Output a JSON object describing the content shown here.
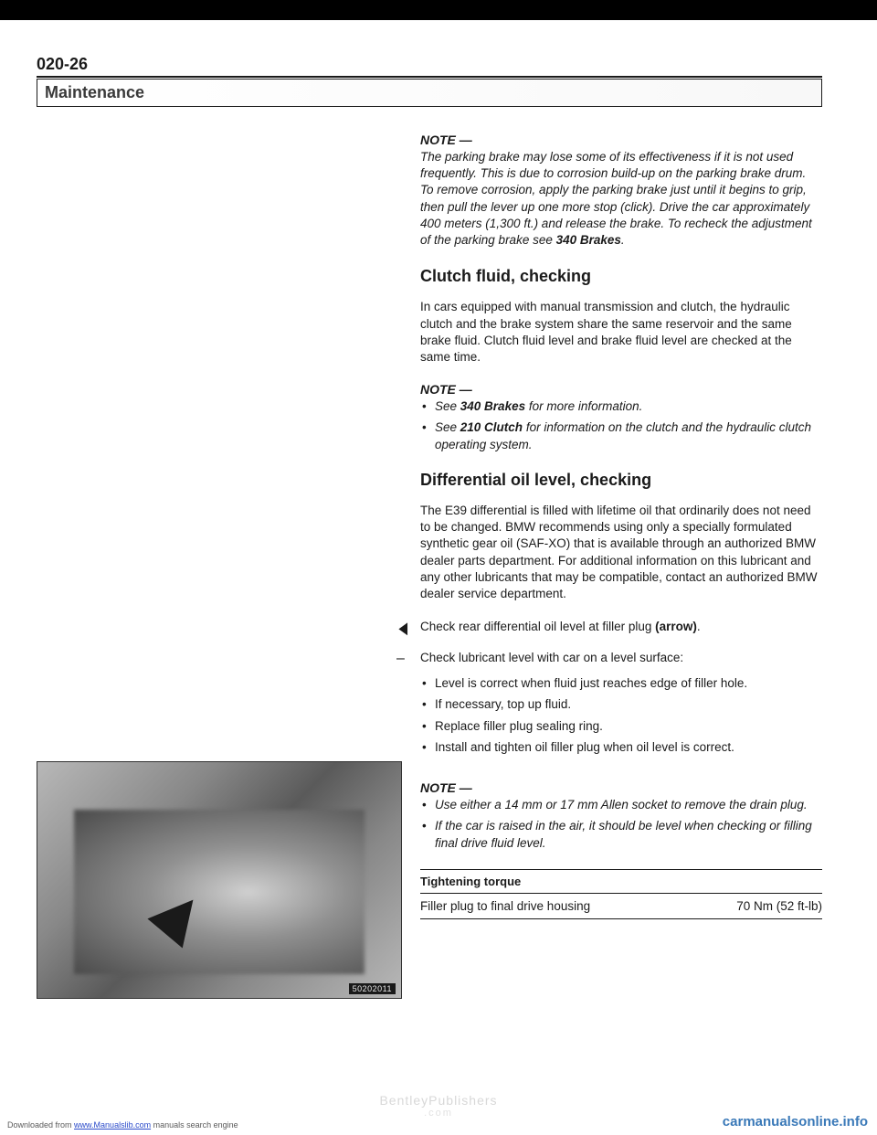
{
  "page_number": "020-26",
  "section_header": "Maintenance",
  "note1": {
    "head": "NOTE —",
    "body_pre": "The parking brake may lose some of its effectiveness if it is not used frequently. This is due to corrosion build-up on the parking brake drum. To remove corrosion, apply the parking brake just until it begins to grip, then pull the lever up one more stop (click). Drive the car approximately 400 meters (1,300 ft.) and release the brake. To recheck the adjustment of the parking brake see ",
    "body_bold": "340 Brakes",
    "body_post": "."
  },
  "h_clutch": "Clutch fluid, checking",
  "para_clutch": "In cars equipped with manual transmission and clutch, the hydraulic clutch and the brake system share the same reservoir and the same brake fluid. Clutch fluid level and brake fluid level are checked at the same time.",
  "note2": {
    "head": "NOTE —",
    "item1_pre": "See ",
    "item1_bold": "340 Brakes",
    "item1_post": " for more information.",
    "item2_pre": "See ",
    "item2_bold": "210 Clutch",
    "item2_post": " for information on the clutch and the hydraulic clutch operating system."
  },
  "h_diff": "Differential oil level, checking",
  "para_diff": "The E39 differential is filled with lifetime oil that ordinarily does not need to be changed. BMW recommends using only a specially formulated synthetic gear oil (SAF-XO) that is available through an authorized BMW dealer parts department. For additional information on this lubricant and any other lubricants that may be compatible, contact an authorized BMW dealer service department.",
  "step_check_pre": "Check rear differential oil level at filler plug ",
  "step_check_bold": "(arrow)",
  "step_check_post": ".",
  "step_lub": "Check lubricant level with car on a level surface:",
  "bullets": {
    "b1": "Level is correct when fluid just reaches edge of filler hole.",
    "b2": "If necessary, top up fluid.",
    "b3": "Replace filler plug sealing ring.",
    "b4": "Install and tighten oil filler plug when oil level is correct."
  },
  "note3": {
    "head": "NOTE —",
    "item1": "Use either a 14 mm or 17 mm Allen socket to remove the drain plug.",
    "item2": "If the car is raised in the air, it should be level when checking or filling final drive fluid level."
  },
  "torque": {
    "head": "Tightening torque",
    "label": "Filler plug to final drive housing",
    "value": "70 Nm (52 ft-lb)"
  },
  "figure_label": "50202011",
  "footer": {
    "left_pre": "Downloaded from ",
    "left_link": "www.Manualslib.com",
    "left_post": " manuals search engine",
    "center_top": "BentleyPublishers",
    "center_sub": ".com",
    "right": "carmanualsonline.info"
  }
}
